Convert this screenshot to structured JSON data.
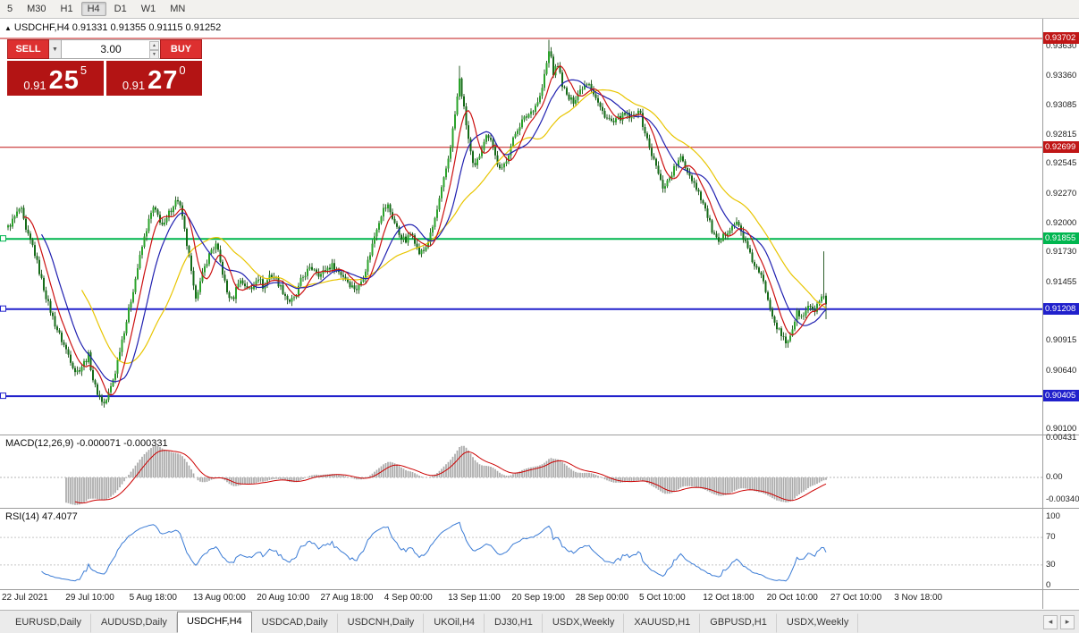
{
  "toolbar": {
    "timeframes": [
      "5",
      "M30",
      "H1",
      "H4",
      "D1",
      "W1",
      "MN"
    ],
    "active_timeframe": "H4"
  },
  "header": {
    "symbol_ohlc": "USDCHF,H4  0.91331 0.91355 0.91115 0.91252"
  },
  "one_click": {
    "sell_label": "SELL",
    "buy_label": "BUY",
    "lot_value": "3.00",
    "sell_price_prefix": "0.91",
    "sell_price_main": "25",
    "sell_price_pip": "5",
    "buy_price_prefix": "0.91",
    "buy_price_main": "27",
    "buy_price_pip": "0"
  },
  "chart_data": {
    "type": "candlestick",
    "symbol": "USDCHF",
    "timeframe": "H4",
    "last_ohlc": {
      "open": 0.91331,
      "high": 0.91355,
      "low": 0.91115,
      "close": 0.91252
    },
    "y_axis_ticks": [
      "0.93630",
      "0.93360",
      "0.93085",
      "0.92815",
      "0.92545",
      "0.92270",
      "0.92000",
      "0.91730",
      "0.91455",
      "0.91185",
      "0.90915",
      "0.90640",
      "0.90370",
      "0.90100"
    ],
    "x_axis_ticks": [
      "22 Jul 2021",
      "29 Jul 10:00",
      "5 Aug 18:00",
      "13 Aug 00:00",
      "20 Aug 10:00",
      "27 Aug 18:00",
      "4 Sep 00:00",
      "13 Sep 11:00",
      "20 Sep 19:00",
      "28 Sep 00:00",
      "5 Oct 10:00",
      "12 Oct 18:00",
      "20 Oct 10:00",
      "27 Oct 10:00",
      "3 Nov 18:00"
    ],
    "price_levels": [
      {
        "value": 0.93702,
        "label": "0.93702",
        "color": "#c01616",
        "width": 1
      },
      {
        "value": 0.92699,
        "label": "0.92699",
        "color": "#c01616",
        "width": 1
      },
      {
        "value": 0.91855,
        "label": "0.91855",
        "color": "#00b64f",
        "width": 2
      },
      {
        "value": 0.91208,
        "label": "0.91208",
        "color": "#2020cc",
        "width": 2
      },
      {
        "value": 0.90405,
        "label": "0.90405",
        "color": "#2020cc",
        "width": 2
      }
    ],
    "indicators": {
      "macd": {
        "title_values": "MACD(12,26,9) -0.000071 -0.000331",
        "scale": [
          "0.00431",
          "0.00",
          "-0.00340"
        ]
      },
      "rsi": {
        "title_values": "RSI(14) 47.4077",
        "scale": [
          "100",
          "70",
          "30",
          "0"
        ],
        "levels": [
          70,
          30
        ]
      }
    },
    "colors": {
      "bull": "#2ba32b",
      "bear": "#156b18",
      "wick": "#2f5f2c",
      "ma_fast": "#cc1111",
      "ma_mid": "#2020b0",
      "ma_slow": "#e8c500",
      "macd_hist": "#a9a9a9",
      "macd_signal": "#cc0000",
      "rsi_line": "#3a7bd5"
    },
    "price_path_anchors": [
      [
        8,
        0.9196
      ],
      [
        16,
        0.9206
      ],
      [
        22,
        0.9215
      ],
      [
        28,
        0.9192
      ],
      [
        36,
        0.9178
      ],
      [
        44,
        0.9152
      ],
      [
        52,
        0.9128
      ],
      [
        60,
        0.9108
      ],
      [
        68,
        0.9092
      ],
      [
        76,
        0.9078
      ],
      [
        84,
        0.9062
      ],
      [
        92,
        0.907
      ],
      [
        98,
        0.9078
      ],
      [
        104,
        0.9052
      ],
      [
        110,
        0.904
      ],
      [
        116,
        0.9033
      ],
      [
        122,
        0.9046
      ],
      [
        128,
        0.9063
      ],
      [
        134,
        0.9088
      ],
      [
        140,
        0.9108
      ],
      [
        146,
        0.9131
      ],
      [
        152,
        0.9155
      ],
      [
        158,
        0.9178
      ],
      [
        164,
        0.9198
      ],
      [
        170,
        0.9214
      ],
      [
        176,
        0.9206
      ],
      [
        182,
        0.9196
      ],
      [
        188,
        0.9209
      ],
      [
        194,
        0.9219
      ],
      [
        199,
        0.9222
      ],
      [
        205,
        0.9195
      ],
      [
        211,
        0.9165
      ],
      [
        217,
        0.9131
      ],
      [
        223,
        0.9145
      ],
      [
        229,
        0.9162
      ],
      [
        235,
        0.9175
      ],
      [
        241,
        0.918
      ],
      [
        247,
        0.9158
      ],
      [
        253,
        0.9136
      ],
      [
        259,
        0.9128
      ],
      [
        266,
        0.9148
      ],
      [
        273,
        0.9143
      ],
      [
        280,
        0.9138
      ],
      [
        287,
        0.9152
      ],
      [
        294,
        0.914
      ],
      [
        301,
        0.9153
      ],
      [
        308,
        0.9148
      ],
      [
        315,
        0.9138
      ],
      [
        322,
        0.9128
      ],
      [
        329,
        0.913
      ],
      [
        336,
        0.9148
      ],
      [
        343,
        0.9156
      ],
      [
        350,
        0.9159
      ],
      [
        357,
        0.9152
      ],
      [
        364,
        0.9158
      ],
      [
        371,
        0.9161
      ],
      [
        378,
        0.9155
      ],
      [
        385,
        0.915
      ],
      [
        392,
        0.9142
      ],
      [
        399,
        0.9139
      ],
      [
        406,
        0.9152
      ],
      [
        413,
        0.9172
      ],
      [
        420,
        0.9195
      ],
      [
        427,
        0.9212
      ],
      [
        433,
        0.9216
      ],
      [
        439,
        0.9203
      ],
      [
        446,
        0.9189
      ],
      [
        453,
        0.9183
      ],
      [
        460,
        0.9193
      ],
      [
        467,
        0.9172
      ],
      [
        474,
        0.9175
      ],
      [
        481,
        0.919
      ],
      [
        488,
        0.9212
      ],
      [
        495,
        0.9238
      ],
      [
        502,
        0.9266
      ],
      [
        508,
        0.93
      ],
      [
        513,
        0.9332
      ],
      [
        518,
        0.9305
      ],
      [
        524,
        0.9272
      ],
      [
        529,
        0.9248
      ],
      [
        535,
        0.9262
      ],
      [
        541,
        0.9278
      ],
      [
        547,
        0.9282
      ],
      [
        553,
        0.9262
      ],
      [
        559,
        0.9246
      ],
      [
        565,
        0.9258
      ],
      [
        571,
        0.9272
      ],
      [
        577,
        0.9286
      ],
      [
        583,
        0.9294
      ],
      [
        590,
        0.93
      ],
      [
        597,
        0.9307
      ],
      [
        604,
        0.9318
      ],
      [
        610,
        0.9345
      ],
      [
        614,
        0.9362
      ],
      [
        618,
        0.9338
      ],
      [
        623,
        0.9346
      ],
      [
        628,
        0.9328
      ],
      [
        634,
        0.9315
      ],
      [
        640,
        0.9312
      ],
      [
        646,
        0.932
      ],
      [
        652,
        0.9328
      ],
      [
        658,
        0.933
      ],
      [
        664,
        0.9318
      ],
      [
        671,
        0.9305
      ],
      [
        678,
        0.9297
      ],
      [
        685,
        0.9292
      ],
      [
        692,
        0.9297
      ],
      [
        699,
        0.93
      ],
      [
        706,
        0.9296
      ],
      [
        713,
        0.9306
      ],
      [
        719,
        0.9288
      ],
      [
        726,
        0.9268
      ],
      [
        733,
        0.9252
      ],
      [
        740,
        0.9233
      ],
      [
        747,
        0.924
      ],
      [
        754,
        0.9252
      ],
      [
        761,
        0.926
      ],
      [
        768,
        0.9248
      ],
      [
        775,
        0.9238
      ],
      [
        782,
        0.9226
      ],
      [
        789,
        0.921
      ],
      [
        796,
        0.9192
      ],
      [
        803,
        0.918
      ],
      [
        810,
        0.919
      ],
      [
        817,
        0.9198
      ],
      [
        824,
        0.92
      ],
      [
        831,
        0.9186
      ],
      [
        838,
        0.917
      ],
      [
        845,
        0.9158
      ],
      [
        852,
        0.9148
      ],
      [
        859,
        0.9128
      ],
      [
        866,
        0.9108
      ],
      [
        873,
        0.9096
      ],
      [
        879,
        0.9089
      ],
      [
        885,
        0.9102
      ],
      [
        891,
        0.9118
      ],
      [
        897,
        0.9112
      ],
      [
        903,
        0.9124
      ],
      [
        909,
        0.9117
      ],
      [
        915,
        0.9128
      ],
      [
        921,
        0.9131
      ],
      [
        925,
        0.91252
      ]
    ],
    "wick_extremes": {
      "highs": [
        [
          513,
          0.9345
        ],
        [
          614,
          0.9369
        ],
        [
          921,
          0.9174
        ]
      ],
      "lows": [
        [
          115,
          0.9031
        ],
        [
          878,
          0.9085
        ]
      ]
    }
  },
  "tabs": {
    "items": [
      "EURUSD,Daily",
      "AUDUSD,Daily",
      "USDCHF,H4",
      "USDCAD,Daily",
      "USDCNH,Daily",
      "UKOil,H4",
      "DJ30,H1",
      "USDX,Weekly",
      "XAUUSD,H1",
      "GBPUSD,H1",
      "USDX,Weekly"
    ],
    "active_index": 2
  }
}
